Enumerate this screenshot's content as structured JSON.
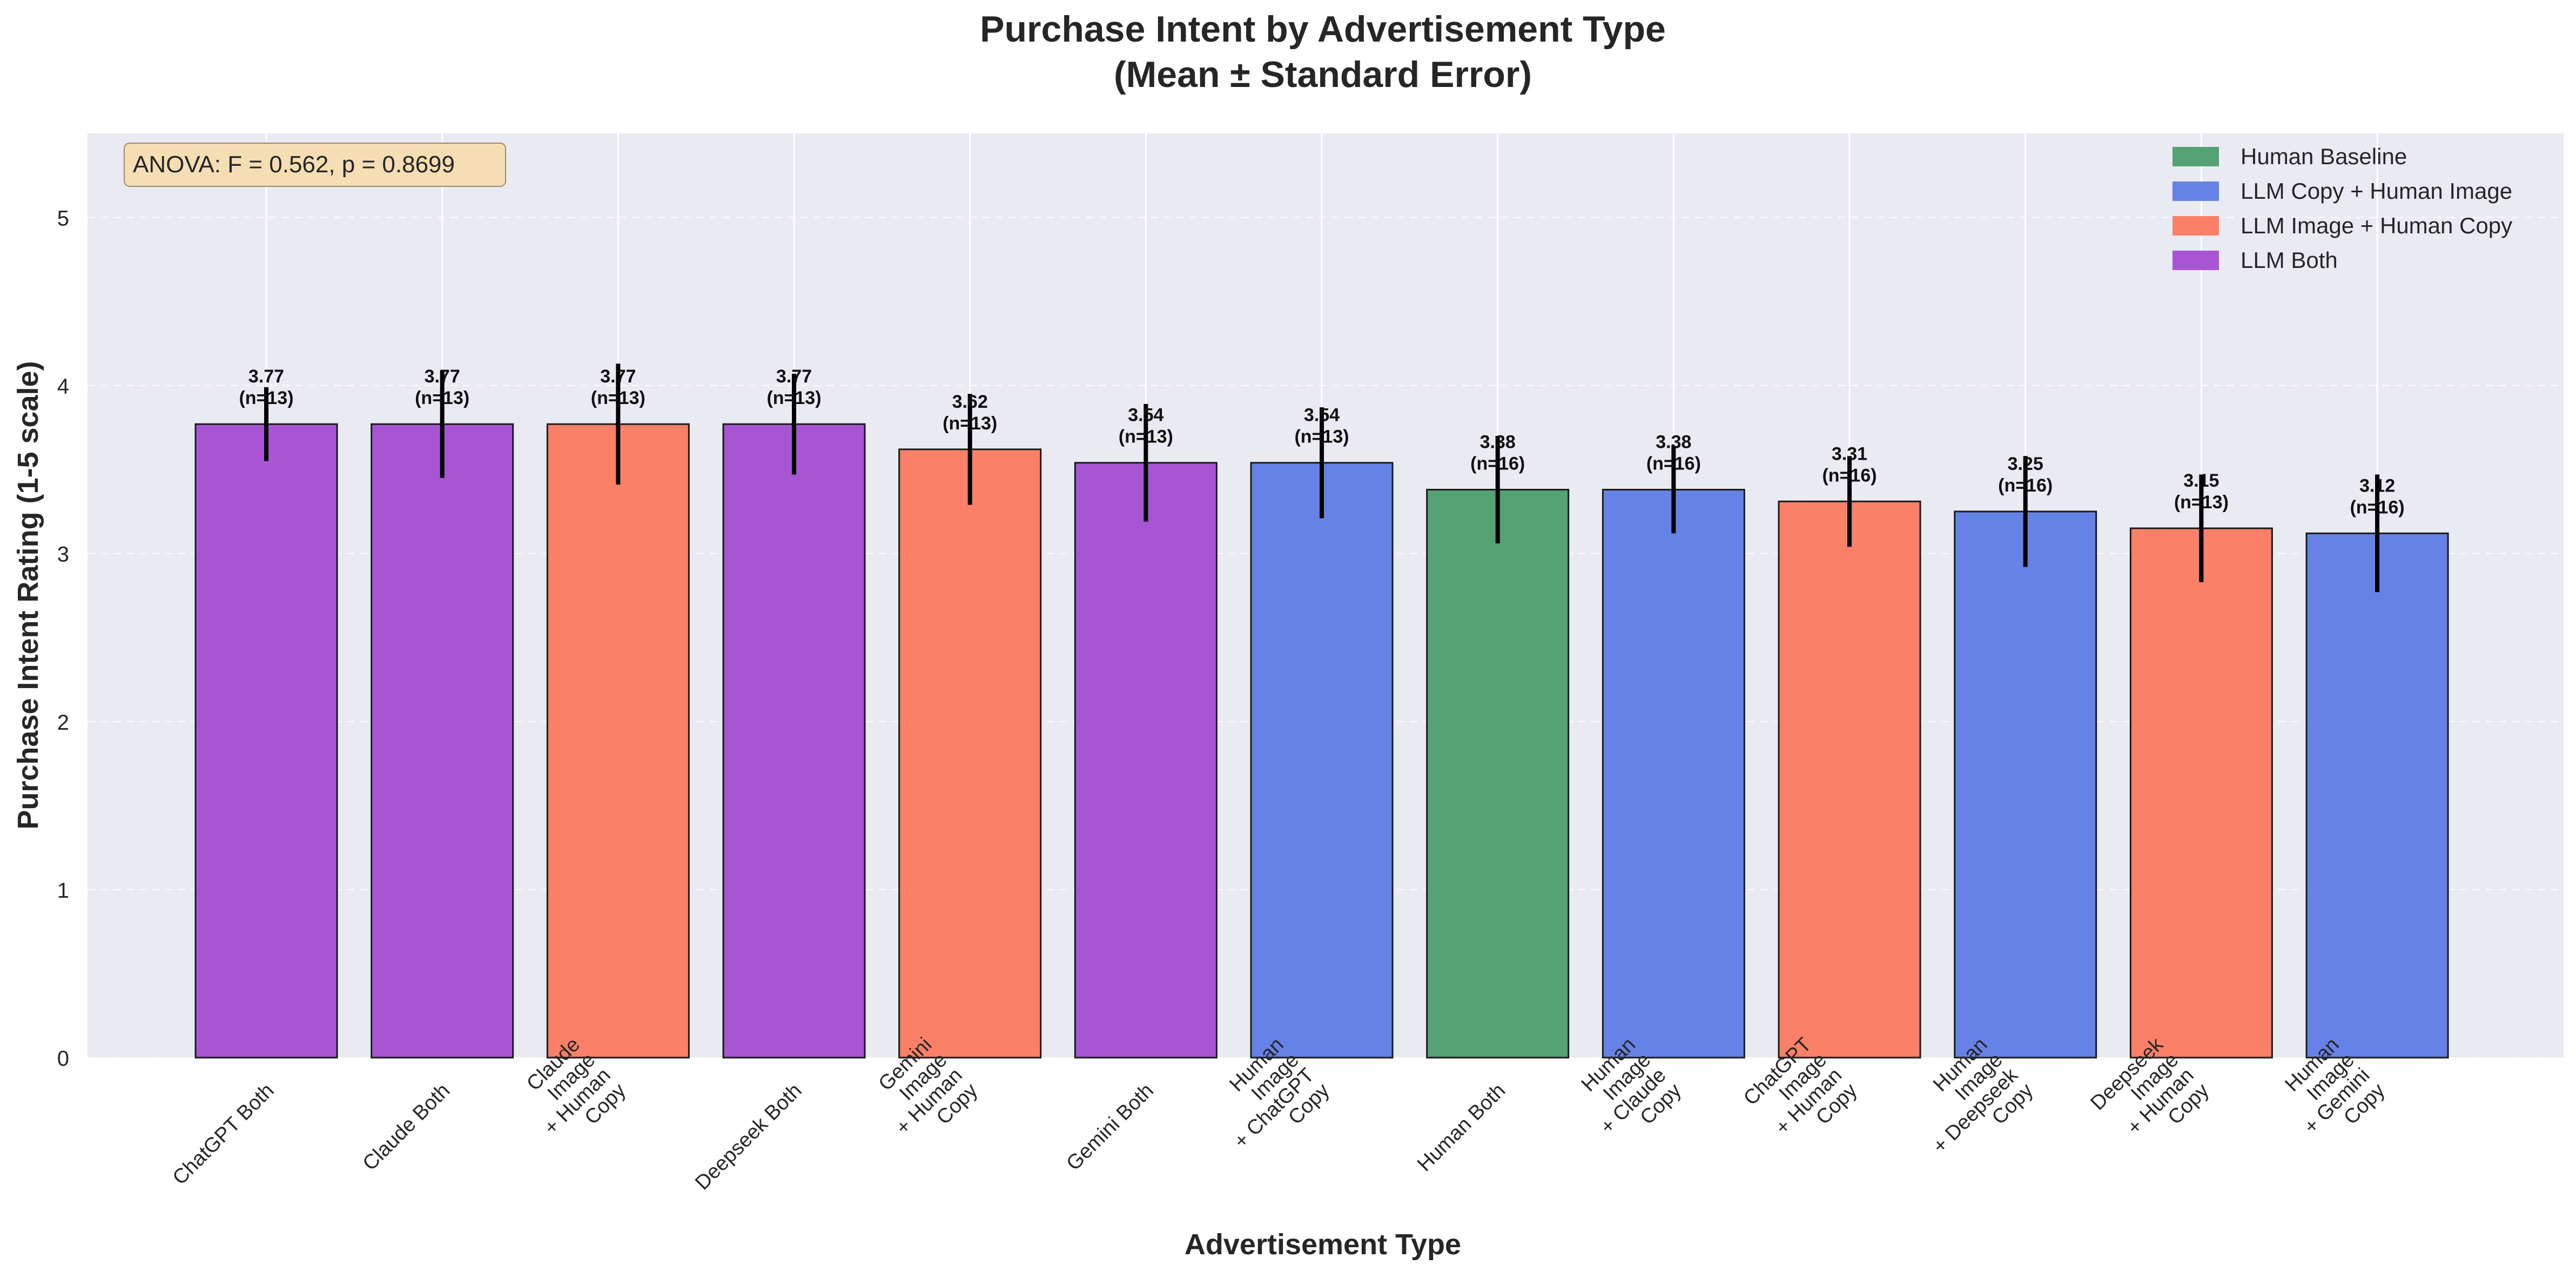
{
  "chart_data": {
    "type": "bar",
    "title_line1": "Purchase Intent by Advertisement Type",
    "title_line2": "(Mean ± Standard Error)",
    "xlabel": "Advertisement Type",
    "ylabel": "Purchase Intent Rating (1-5 scale)",
    "ylim": [
      0,
      5.5
    ],
    "yticks": [
      0,
      1,
      2,
      3,
      4,
      5
    ],
    "grid": true,
    "legend_placement": "top-right",
    "stats_annotation": "ANOVA: F = 0.562, p = 0.8699",
    "groups": [
      {
        "name": "Human Baseline",
        "color": "#55a275"
      },
      {
        "name": "LLM Copy + Human Image",
        "color": "#6582e6"
      },
      {
        "name": "LLM Image + Human Copy",
        "color": "#fa8068"
      },
      {
        "name": "LLM Both",
        "color": "#a855d4"
      }
    ],
    "bars": [
      {
        "label": [
          "ChatGPT Both"
        ],
        "value": 3.77,
        "se": 0.22,
        "n_label": "(n=13)",
        "value_label": "3.77",
        "group": 3
      },
      {
        "label": [
          "Claude Both"
        ],
        "value": 3.77,
        "se": 0.32,
        "n_label": "(n=13)",
        "value_label": "3.77",
        "group": 3
      },
      {
        "label": [
          "Claude",
          "Image",
          "+ Human",
          "Copy"
        ],
        "value": 3.77,
        "se": 0.36,
        "n_label": "(n=13)",
        "value_label": "3.77",
        "group": 2
      },
      {
        "label": [
          "Deepseek Both"
        ],
        "value": 3.77,
        "se": 0.3,
        "n_label": "(n=13)",
        "value_label": "3.77",
        "group": 3
      },
      {
        "label": [
          "Gemini",
          "Image",
          "+ Human",
          "Copy"
        ],
        "value": 3.62,
        "se": 0.33,
        "n_label": "(n=13)",
        "value_label": "3.62",
        "group": 2
      },
      {
        "label": [
          "Gemini Both"
        ],
        "value": 3.54,
        "se": 0.35,
        "n_label": "(n=13)",
        "value_label": "3.54",
        "group": 3
      },
      {
        "label": [
          "Human",
          "Image",
          "+ ChatGPT",
          "Copy"
        ],
        "value": 3.54,
        "se": 0.33,
        "n_label": "(n=13)",
        "value_label": "3.54",
        "group": 1
      },
      {
        "label": [
          "Human Both"
        ],
        "value": 3.38,
        "se": 0.32,
        "n_label": "(n=16)",
        "value_label": "3.38",
        "group": 0
      },
      {
        "label": [
          "Human",
          "Image",
          "+ Claude",
          "Copy"
        ],
        "value": 3.38,
        "se": 0.26,
        "n_label": "(n=16)",
        "value_label": "3.38",
        "group": 1
      },
      {
        "label": [
          "ChatGPT",
          "Image",
          "+ Human",
          "Copy"
        ],
        "value": 3.31,
        "se": 0.27,
        "n_label": "(n=16)",
        "value_label": "3.31",
        "group": 2
      },
      {
        "label": [
          "Human",
          "Image",
          "+ Deepseek",
          "Copy"
        ],
        "value": 3.25,
        "se": 0.33,
        "n_label": "(n=16)",
        "value_label": "3.25",
        "group": 1
      },
      {
        "label": [
          "Deepseek",
          "Image",
          "+ Human",
          "Copy"
        ],
        "value": 3.15,
        "se": 0.32,
        "n_label": "(n=13)",
        "value_label": "3.15",
        "group": 2
      },
      {
        "label": [
          "Human",
          "Image",
          "+ Gemini",
          "Copy"
        ],
        "value": 3.12,
        "se": 0.35,
        "n_label": "(n=16)",
        "value_label": "3.12",
        "group": 1
      }
    ]
  }
}
